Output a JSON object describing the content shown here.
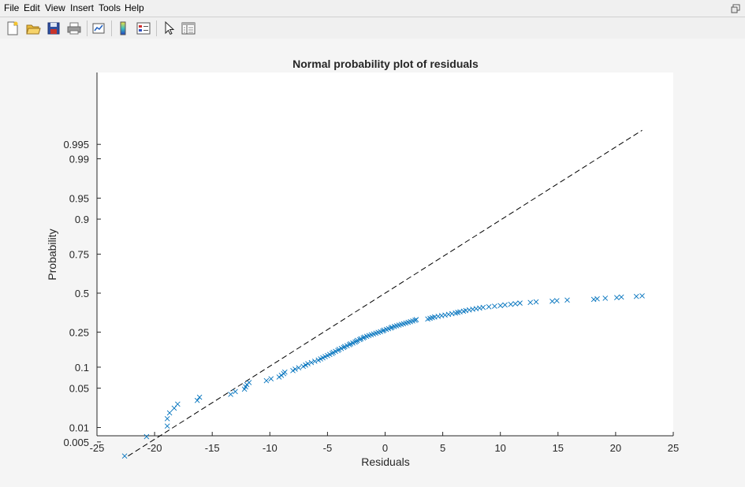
{
  "menu": {
    "items": [
      {
        "id": "file",
        "label": "File"
      },
      {
        "id": "edit",
        "label": "Edit"
      },
      {
        "id": "view",
        "label": "View"
      },
      {
        "id": "insert",
        "label": "Insert"
      },
      {
        "id": "tools",
        "label": "Tools"
      },
      {
        "id": "help",
        "label": "Help"
      }
    ]
  },
  "toolbar": {
    "icons": [
      "new-figure-icon",
      "open-file-icon",
      "save-icon",
      "print-icon",
      "link-plot-icon",
      "insert-colorbar-icon",
      "insert-legend-icon",
      "edit-plot-arrow-icon",
      "property-inspector-icon"
    ]
  },
  "chart_data": {
    "type": "scatter",
    "title": "Normal probability plot of residuals",
    "xlabel": "Residuals",
    "ylabel": "Probability",
    "xlim": [
      -25,
      25
    ],
    "x_ticks": [
      -25,
      -20,
      -15,
      -10,
      -5,
      0,
      5,
      10,
      15,
      20,
      25
    ],
    "x_tick_labels": [
      "-25",
      "-20",
      "-15",
      "-10",
      "-5",
      "0",
      "5",
      "10",
      "15",
      "20",
      "25"
    ],
    "y_scale": "normal-probability",
    "y_ticks": [
      0.005,
      0.01,
      0.05,
      0.1,
      0.25,
      0.5,
      0.75,
      0.9,
      0.95,
      0.99,
      0.995
    ],
    "y_tick_labels": [
      "0.005",
      "0.01",
      "0.05",
      "0.1",
      "0.25",
      "0.5",
      "0.75",
      "0.9",
      "0.95",
      "0.99",
      "0.995"
    ],
    "grid": false,
    "marker": "x",
    "marker_color": "#0072bd",
    "reference_line": {
      "style": "dashed",
      "color": "#000000",
      "from": [
        -22.3,
        0.0024
      ],
      "to": [
        22.3,
        0.9976
      ]
    },
    "series": [
      {
        "x": [
          -22.6,
          -20.7,
          -18.9,
          -18.9,
          -18.7,
          -18.3,
          -18.0,
          -16.3,
          -16.1,
          -13.4,
          -13.0,
          -12.2,
          -12.1,
          -12.0,
          -11.8,
          -10.3,
          -9.9,
          -9.2,
          -9.0,
          -8.8,
          -8.7,
          -8.0,
          -7.8,
          -7.5,
          -7.1,
          -6.9,
          -6.7,
          -6.4,
          -6.1,
          -5.8,
          -5.6,
          -5.4,
          -5.2,
          -5.0,
          -4.8,
          -4.6,
          -4.5,
          -4.3,
          -4.1,
          -4.0,
          -3.8,
          -3.6,
          -3.5,
          -3.3,
          -3.1,
          -3.0,
          -2.8,
          -2.6,
          -2.5,
          -2.4,
          -2.2,
          -2.1,
          -1.9,
          -1.8,
          -1.6,
          -1.4,
          -1.2,
          -1.0,
          -0.8,
          -0.6,
          -0.4,
          -0.2,
          -0.1,
          0.1,
          0.3,
          0.5,
          0.6,
          0.8,
          1.0,
          1.2,
          1.4,
          1.6,
          1.8,
          2.0,
          2.2,
          2.4,
          2.6,
          2.7,
          3.7,
          3.9,
          4.1,
          4.3,
          4.6,
          4.9,
          5.2,
          5.5,
          5.8,
          6.1,
          6.3,
          6.5,
          6.8,
          7.0,
          7.3,
          7.6,
          7.9,
          8.2,
          8.5,
          9.0,
          9.5,
          10.0,
          10.4,
          10.9,
          11.3,
          11.7,
          12.6,
          13.1,
          14.5,
          14.9,
          15.8,
          18.1,
          18.4,
          19.1,
          20.1,
          20.5,
          21.8,
          22.3
        ],
        "y": [
          0.0024,
          0.0065,
          0.0107,
          0.0149,
          0.0191,
          0.0232,
          0.0274,
          0.0316,
          0.0358,
          0.0399,
          0.0441,
          0.0483,
          0.0524,
          0.0566,
          0.0608,
          0.0649,
          0.0691,
          0.0733,
          0.0774,
          0.0816,
          0.0858,
          0.0899,
          0.0941,
          0.0983,
          0.1024,
          0.1066,
          0.1108,
          0.1149,
          0.1191,
          0.1233,
          0.1274,
          0.1316,
          0.1358,
          0.1399,
          0.1441,
          0.1483,
          0.1524,
          0.1566,
          0.1608,
          0.1649,
          0.1691,
          0.1733,
          0.1774,
          0.1816,
          0.1858,
          0.1899,
          0.1941,
          0.1983,
          0.2024,
          0.2066,
          0.2108,
          0.2149,
          0.2191,
          0.2233,
          0.2274,
          0.2316,
          0.2358,
          0.2399,
          0.2441,
          0.2483,
          0.2524,
          0.2566,
          0.2608,
          0.2649,
          0.2691,
          0.2733,
          0.2774,
          0.2816,
          0.2858,
          0.2899,
          0.2941,
          0.2983,
          0.3024,
          0.3066,
          0.3108,
          0.3149,
          0.3191,
          0.3233,
          0.3274,
          0.3316,
          0.3358,
          0.3399,
          0.3441,
          0.3483,
          0.3524,
          0.3566,
          0.3608,
          0.3649,
          0.3691,
          0.3733,
          0.3774,
          0.3816,
          0.3858,
          0.3899,
          0.3941,
          0.3983,
          0.4024,
          0.4066,
          0.4108,
          0.4149,
          0.4191,
          0.4233,
          0.4274,
          0.4316,
          0.4358,
          0.4399,
          0.4441,
          0.4483,
          0.4524,
          0.4566,
          0.4608,
          0.4649,
          0.4691,
          0.4733,
          0.4774,
          0.4816
        ]
      }
    ]
  }
}
